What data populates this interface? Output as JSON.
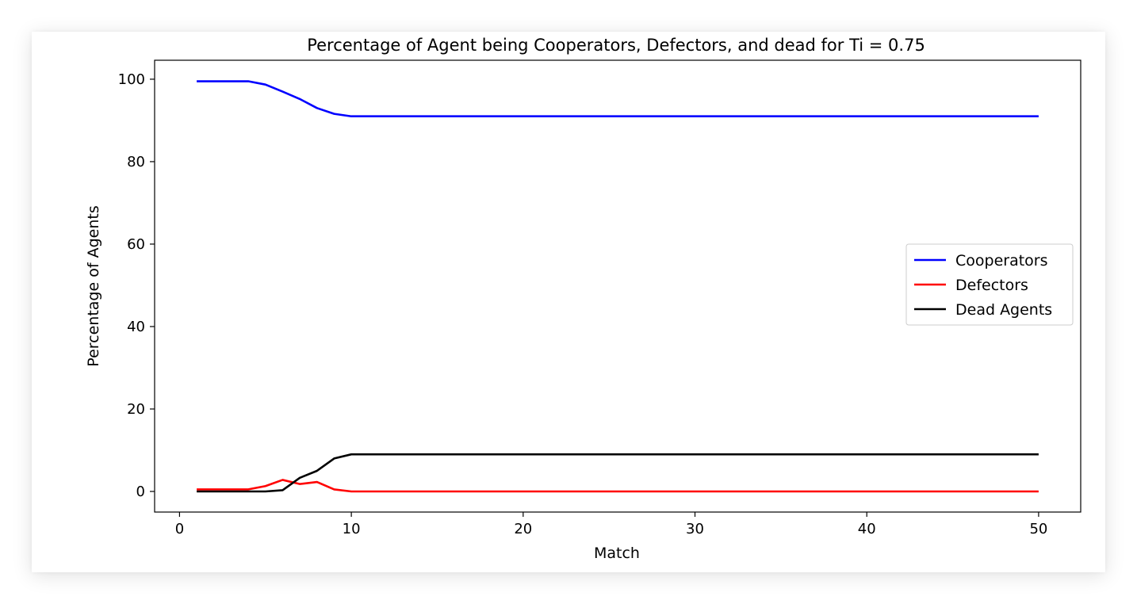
{
  "chart_data": {
    "type": "line",
    "title": "Percentage of Agent being Cooperators, Defectors, and dead for Ti = 0.75",
    "xlabel": "Match",
    "ylabel": "Percentage of Agents",
    "xlim": [
      -1.45,
      52.45
    ],
    "ylim": [
      -5,
      104.6
    ],
    "xticks": [
      0,
      10,
      20,
      30,
      40,
      50
    ],
    "yticks": [
      0,
      20,
      40,
      60,
      80,
      100
    ],
    "grid": false,
    "legend_position": "center-right",
    "x": [
      1,
      2,
      3,
      4,
      5,
      6,
      7,
      8,
      9,
      10,
      11,
      12,
      13,
      14,
      15,
      16,
      17,
      18,
      19,
      20,
      21,
      22,
      23,
      24,
      25,
      26,
      27,
      28,
      29,
      30,
      31,
      32,
      33,
      34,
      35,
      36,
      37,
      38,
      39,
      40,
      41,
      42,
      43,
      44,
      45,
      46,
      47,
      48,
      49,
      50
    ],
    "series": [
      {
        "name": "Cooperators",
        "color": "#0000ff",
        "values": [
          99.5,
          99.5,
          99.5,
          99.5,
          98.7,
          97.0,
          95.2,
          93.0,
          91.6,
          91.0,
          91.0,
          91.0,
          91.0,
          91.0,
          91.0,
          91.0,
          91.0,
          91.0,
          91.0,
          91.0,
          91.0,
          91.0,
          91.0,
          91.0,
          91.0,
          91.0,
          91.0,
          91.0,
          91.0,
          91.0,
          91.0,
          91.0,
          91.0,
          91.0,
          91.0,
          91.0,
          91.0,
          91.0,
          91.0,
          91.0,
          91.0,
          91.0,
          91.0,
          91.0,
          91.0,
          91.0,
          91.0,
          91.0,
          91.0,
          91.0
        ]
      },
      {
        "name": "Defectors",
        "color": "#ff0000",
        "values": [
          0.5,
          0.5,
          0.5,
          0.5,
          1.3,
          2.8,
          1.8,
          2.3,
          0.5,
          0.0,
          0.0,
          0.0,
          0.0,
          0.0,
          0.0,
          0.0,
          0.0,
          0.0,
          0.0,
          0.0,
          0.0,
          0.0,
          0.0,
          0.0,
          0.0,
          0.0,
          0.0,
          0.0,
          0.0,
          0.0,
          0.0,
          0.0,
          0.0,
          0.0,
          0.0,
          0.0,
          0.0,
          0.0,
          0.0,
          0.0,
          0.0,
          0.0,
          0.0,
          0.0,
          0.0,
          0.0,
          0.0,
          0.0,
          0.0,
          0.0
        ]
      },
      {
        "name": "Dead Agents",
        "color": "#000000",
        "values": [
          0.0,
          0.0,
          0.0,
          0.0,
          0.0,
          0.3,
          3.3,
          5.0,
          8.0,
          9.0,
          9.0,
          9.0,
          9.0,
          9.0,
          9.0,
          9.0,
          9.0,
          9.0,
          9.0,
          9.0,
          9.0,
          9.0,
          9.0,
          9.0,
          9.0,
          9.0,
          9.0,
          9.0,
          9.0,
          9.0,
          9.0,
          9.0,
          9.0,
          9.0,
          9.0,
          9.0,
          9.0,
          9.0,
          9.0,
          9.0,
          9.0,
          9.0,
          9.0,
          9.0,
          9.0,
          9.0,
          9.0,
          9.0,
          9.0,
          9.0
        ]
      }
    ]
  }
}
